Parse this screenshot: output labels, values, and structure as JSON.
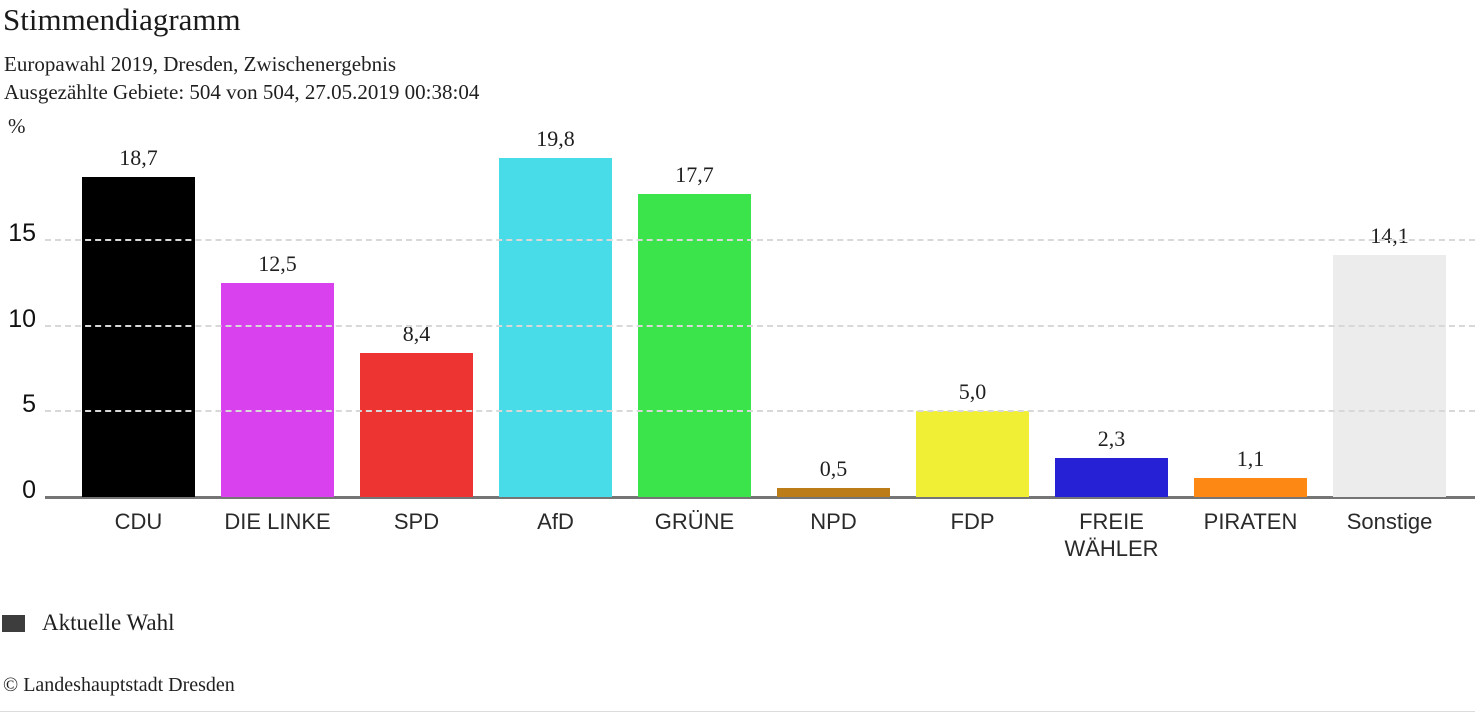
{
  "header": {
    "title": "Stimmendiagramm",
    "subtitle_line1": "Europawahl 2019, Dresden, Zwischenergebnis",
    "subtitle_line2": "Ausgezählte Gebiete: 504 von 504, 27.05.2019 00:38:04"
  },
  "chart_data": {
    "type": "bar",
    "title": "Stimmendiagramm",
    "subtitle": "Europawahl 2019, Dresden, Zwischenergebnis",
    "status_line": "Ausgezählte Gebiete: 504 von 504, 27.05.2019 00:38:04",
    "categories": [
      "CDU",
      "DIE LINKE",
      "SPD",
      "AfD",
      "GRÜNE",
      "NPD",
      "FDP",
      "FREIE WÄHLER",
      "PIRATEN",
      "Sonstige"
    ],
    "values": [
      18.7,
      12.5,
      8.4,
      19.8,
      17.7,
      0.5,
      5.0,
      2.3,
      1.1,
      14.1
    ],
    "value_labels": [
      "18,7",
      "12,5",
      "8,4",
      "19,8",
      "17,7",
      "0,5",
      "5,0",
      "2,3",
      "1,1",
      "14,1"
    ],
    "bar_colors": [
      "#000000",
      "#da41ee",
      "#ee3333",
      "#48dce8",
      "#3ce44b",
      "#bc7d18",
      "#f0ee35",
      "#2721d6",
      "#fd8813",
      "#ececec"
    ],
    "xlabel": "",
    "ylabel": "%",
    "ylim": [
      0,
      20.9
    ],
    "yticks": [
      0,
      5,
      10,
      15
    ],
    "grid": "horizontal-dashed",
    "legend_position": "bottom-left",
    "series_name": "Aktuelle Wahl"
  },
  "axis": {
    "unit_label": "%"
  },
  "legend": {
    "items": [
      {
        "label": "Aktuelle Wahl",
        "swatch_color": "#3d3d3d"
      }
    ]
  },
  "footer": {
    "copyright": "© Landeshauptstadt Dresden"
  }
}
